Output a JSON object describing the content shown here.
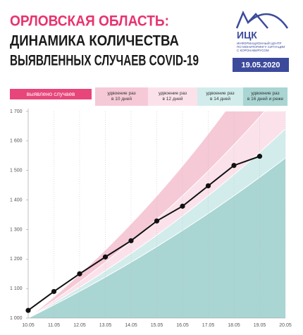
{
  "header": {
    "title": "ОРЛОВСКАЯ ОБЛАСТЬ:",
    "subtitle": [
      "ДИНАМИКА КОЛИЧЕСТВА",
      "ВЫЯВЛЕННЫХ СЛУЧАЕВ COVID-19"
    ],
    "logo": "ИЦК",
    "logo_caption": [
      "ИНФОРМАЦИОННЫЙ ЦЕНТР",
      "ПО МОНИТОРИНГУ СИТУАЦИИ",
      "С КОРОНАВИРУСОМ"
    ],
    "date": "19.05.2020"
  },
  "chart_data": {
    "type": "line",
    "categories": [
      "10.05",
      "11.05",
      "12.05",
      "13.05",
      "14.05",
      "15.05",
      "16.05",
      "17.05",
      "18.05",
      "19.05",
      "20.05"
    ],
    "series": [
      {
        "name": "выявлено случаев",
        "color": "#111111",
        "legend_color": "#e8457b",
        "values": [
          1026,
          1090,
          1150,
          1207,
          1262,
          1329,
          1379,
          1448,
          1517,
          1548,
          null
        ]
      }
    ],
    "bands": [
      {
        "name": "удвоение раз в 10 дней",
        "color": "#f6c9d7",
        "days": 10
      },
      {
        "name": "удвоение раз в 12 дней",
        "color": "#fbe2ea",
        "days": 12
      },
      {
        "name": "удвоение раз в 14 дней",
        "color": "#d2ecec",
        "days": 14
      },
      {
        "name": "удвоение раз в 16 дней и реже",
        "color": "#a9d5d3",
        "days": 16
      }
    ],
    "ylim": [
      1000,
      1700
    ],
    "yticks": [
      {
        "value": 1000,
        "label": "1 000"
      },
      {
        "value": 1100,
        "label": "1 100"
      },
      {
        "value": 1200,
        "label": "1 200"
      },
      {
        "value": 1300,
        "label": "1 300"
      },
      {
        "value": 1400,
        "label": "1 400"
      },
      {
        "value": 1500,
        "label": "1 500"
      },
      {
        "value": 1600,
        "label": "1 600"
      },
      {
        "value": 1700,
        "label": "1 700"
      }
    ],
    "grid": true
  }
}
